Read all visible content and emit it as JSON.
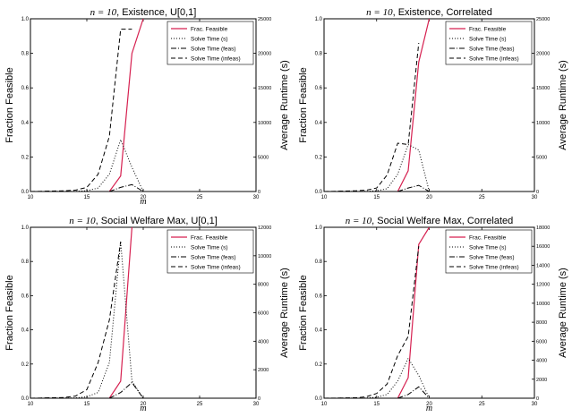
{
  "chart_data": [
    {
      "type": "line",
      "title": "n = 10, Existence, U[0,1]",
      "title_prefix": "n = 10",
      "title_rest": ", Existence, U[0,1]",
      "xlabel": "m",
      "ylabel_left": "Fraction Feasible",
      "ylabel_right": "Average Runtime (s)",
      "xlim": [
        10,
        30
      ],
      "ylim_left": [
        0.0,
        1.0
      ],
      "ylim_right": [
        0,
        25000
      ],
      "x_ticks": [
        "10",
        "15",
        "20",
        "25",
        "30"
      ],
      "y_ticks_left": [
        "0.0",
        "0.2",
        "0.4",
        "0.6",
        "0.8",
        "1.0"
      ],
      "y_ticks_right": [
        "0",
        "5000",
        "10000",
        "15000",
        "20000",
        "25000"
      ],
      "legend_position": "top-right",
      "series": [
        {
          "name": "Frac. Feasible",
          "axis": "left",
          "style": "solid",
          "color": "#d62050",
          "x": [
            17,
            18,
            19,
            20
          ],
          "y": [
            0.0,
            0.09,
            0.8,
            1.0
          ]
        },
        {
          "name": "Solve Time (s)",
          "axis": "right",
          "style": "dotted",
          "color": "#000000",
          "x": [
            10,
            14,
            15,
            16,
            17,
            18,
            19,
            20
          ],
          "y": [
            0,
            20,
            100,
            500,
            2500,
            7500,
            3500,
            0
          ]
        },
        {
          "name": "Solve Time (feas)",
          "axis": "right",
          "style": "dashdot",
          "color": "#000000",
          "x": [
            17,
            18,
            19,
            20
          ],
          "y": [
            0,
            600,
            1000,
            0
          ]
        },
        {
          "name": "Solve Time (infeas)",
          "axis": "right",
          "style": "dashed",
          "color": "#000000",
          "x": [
            10,
            13,
            14,
            15,
            16,
            17,
            18,
            19
          ],
          "y": [
            0,
            100,
            200,
            600,
            2500,
            8000,
            23500,
            23500
          ]
        }
      ]
    },
    {
      "type": "line",
      "title": "n = 10, Existence, Correlated",
      "title_prefix": "n = 10",
      "title_rest": ", Existence, Correlated",
      "xlabel": "",
      "ylabel_left": "Fraction Feasible",
      "ylabel_right": "Average Runtime (s)",
      "xlim": [
        10,
        30
      ],
      "ylim_left": [
        0.0,
        1.0
      ],
      "ylim_right": [
        0,
        25000
      ],
      "x_ticks": [
        "10",
        "15",
        "20",
        "25",
        "30"
      ],
      "y_ticks_left": [
        "0.0",
        "0.2",
        "0.4",
        "0.6",
        "0.8",
        "1.0"
      ],
      "y_ticks_right": [
        "0",
        "5000",
        "10000",
        "15000",
        "20000",
        "25000"
      ],
      "legend_position": "top-right",
      "series": [
        {
          "name": "Frac. Feasible",
          "axis": "left",
          "style": "solid",
          "color": "#d62050",
          "x": [
            17,
            18,
            19,
            20
          ],
          "y": [
            0.0,
            0.12,
            0.75,
            1.0
          ]
        },
        {
          "name": "Solve Time (s)",
          "axis": "right",
          "style": "dotted",
          "color": "#000000",
          "x": [
            10,
            14,
            15,
            16,
            17,
            18,
            19,
            20
          ],
          "y": [
            0,
            20,
            100,
            400,
            2500,
            6800,
            6000,
            0
          ]
        },
        {
          "name": "Solve Time (feas)",
          "axis": "right",
          "style": "dashdot",
          "color": "#000000",
          "x": [
            17,
            18,
            19,
            20
          ],
          "y": [
            0,
            500,
            900,
            0
          ]
        },
        {
          "name": "Solve Time (infeas)",
          "axis": "right",
          "style": "dashed",
          "color": "#000000",
          "x": [
            10,
            13,
            14,
            15,
            16,
            17,
            18,
            19
          ],
          "y": [
            0,
            100,
            200,
            500,
            2400,
            7000,
            6800,
            21500
          ]
        }
      ]
    },
    {
      "type": "line",
      "title": "n = 10, Social Welfare Max, U[0,1]",
      "title_prefix": "n = 10",
      "title_rest": ", Social Welfare Max, U[0,1]",
      "xlabel": "m",
      "ylabel_left": "Fraction Feasible",
      "ylabel_right": "Average Runtime (s)",
      "xlim": [
        10,
        30
      ],
      "ylim_left": [
        0.0,
        1.0
      ],
      "ylim_right": [
        0,
        12000
      ],
      "x_ticks": [
        "10",
        "15",
        "20",
        "25",
        "30"
      ],
      "y_ticks_left": [
        "0.0",
        "0.2",
        "0.4",
        "0.6",
        "0.8",
        "1.0"
      ],
      "y_ticks_right": [
        "0",
        "2000",
        "4000",
        "6000",
        "8000",
        "10000",
        "12000"
      ],
      "legend_position": "top-right",
      "series": [
        {
          "name": "Frac. Feasible",
          "axis": "left",
          "style": "solid",
          "color": "#d62050",
          "x": [
            17,
            18,
            19
          ],
          "y": [
            0.0,
            0.1,
            1.0
          ]
        },
        {
          "name": "Solve Time (s)",
          "axis": "right",
          "style": "dotted",
          "color": "#000000",
          "x": [
            10,
            14,
            15,
            16,
            17,
            18,
            19,
            20
          ],
          "y": [
            0,
            20,
            100,
            400,
            2500,
            11000,
            1200,
            0
          ]
        },
        {
          "name": "Solve Time (feas)",
          "axis": "right",
          "style": "dashdot",
          "color": "#000000",
          "x": [
            17,
            18,
            19,
            20
          ],
          "y": [
            0,
            400,
            1100,
            0
          ]
        },
        {
          "name": "Solve Time (infeas)",
          "axis": "right",
          "style": "dashed",
          "color": "#000000",
          "x": [
            10,
            13,
            14,
            15,
            16,
            17,
            18
          ],
          "y": [
            0,
            50,
            150,
            600,
            2500,
            5500,
            11000
          ]
        }
      ]
    },
    {
      "type": "line",
      "title": "n = 10, Social Welfare Max, Correlated",
      "title_prefix": "n = 10",
      "title_rest": ", Social Welfare Max, Correlated",
      "xlabel": "m",
      "ylabel_left": "Fraction Feasible",
      "ylabel_right": "Average Runtime (s)",
      "xlim": [
        10,
        30
      ],
      "ylim_left": [
        0.0,
        1.0
      ],
      "ylim_right": [
        0,
        18000
      ],
      "x_ticks": [
        "10",
        "15",
        "20",
        "25",
        "30"
      ],
      "y_ticks_left": [
        "0.0",
        "0.2",
        "0.4",
        "0.6",
        "0.8",
        "1.0"
      ],
      "y_ticks_right": [
        "0",
        "2000",
        "4000",
        "6000",
        "8000",
        "10000",
        "12000",
        "14000",
        "16000",
        "18000"
      ],
      "legend_position": "top-right",
      "series": [
        {
          "name": "Frac. Feasible",
          "axis": "left",
          "style": "solid",
          "color": "#d62050",
          "x": [
            17,
            18,
            19,
            20
          ],
          "y": [
            0.0,
            0.12,
            0.9,
            1.0
          ]
        },
        {
          "name": "Solve Time (s)",
          "axis": "right",
          "style": "dotted",
          "color": "#000000",
          "x": [
            10,
            14,
            15,
            16,
            17,
            18,
            19,
            20
          ],
          "y": [
            0,
            20,
            100,
            400,
            1800,
            4200,
            2400,
            0
          ]
        },
        {
          "name": "Solve Time (feas)",
          "axis": "right",
          "style": "dashdot",
          "color": "#000000",
          "x": [
            17,
            18,
            19,
            20
          ],
          "y": [
            0,
            400,
            1200,
            0
          ]
        },
        {
          "name": "Solve Time (infeas)",
          "axis": "right",
          "style": "dashed",
          "color": "#000000",
          "x": [
            10,
            13,
            14,
            15,
            16,
            17,
            18,
            19
          ],
          "y": [
            0,
            50,
            150,
            500,
            1500,
            4500,
            6500,
            16000
          ]
        }
      ]
    }
  ]
}
